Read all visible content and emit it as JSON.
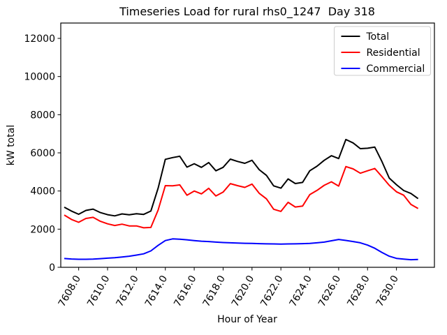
{
  "chart_data": {
    "type": "line",
    "title": "Timeseries Load for rural rhs0_1247  Day 318",
    "xlabel": "Hour of Year",
    "ylabel": "kW total",
    "xlim": [
      7606.76,
      7632.63
    ],
    "ylim": [
      0,
      12805
    ],
    "grid": false,
    "legend_position": "upper right",
    "x_start": 7607.0,
    "x_step": 0.5,
    "x_ticks": [
      7608,
      7610,
      7612,
      7614,
      7616,
      7618,
      7620,
      7622,
      7624,
      7626,
      7628,
      7630
    ],
    "x_tick_labels": [
      "7608.0",
      "7610.0",
      "7612.0",
      "7614.0",
      "7616.0",
      "7618.0",
      "7620.0",
      "7622.0",
      "7624.0",
      "7626.0",
      "7628.0",
      "7630.0"
    ],
    "y_ticks": [
      0,
      2000,
      4000,
      6000,
      8000,
      10000,
      12000
    ],
    "y_tick_labels": [
      "0",
      "2000",
      "4000",
      "6000",
      "8000",
      "10000",
      "12000"
    ],
    "series": [
      {
        "name": "Total",
        "color": "#000000",
        "values": [
          3150,
          2950,
          2780,
          2980,
          3050,
          2870,
          2760,
          2695,
          2800,
          2750,
          2810,
          2775,
          2950,
          4150,
          5660,
          5750,
          5820,
          5250,
          5430,
          5240,
          5490,
          5060,
          5240,
          5670,
          5550,
          5450,
          5610,
          5120,
          4820,
          4270,
          4150,
          4630,
          4390,
          4450,
          5060,
          5300,
          5610,
          5850,
          5700,
          6700,
          6520,
          6220,
          6240,
          6300,
          5540,
          4680,
          4330,
          4025,
          3870,
          3600
        ]
      },
      {
        "name": "Residential",
        "color": "#ff0000",
        "values": [
          2740,
          2510,
          2360,
          2560,
          2620,
          2410,
          2280,
          2190,
          2260,
          2170,
          2170,
          2070,
          2090,
          3000,
          4280,
          4270,
          4320,
          3780,
          4000,
          3850,
          4140,
          3740,
          3940,
          4385,
          4280,
          4190,
          4360,
          3880,
          3590,
          3045,
          2930,
          3405,
          3160,
          3210,
          3810,
          4030,
          4300,
          4480,
          4260,
          5280,
          5160,
          4930,
          5060,
          5180,
          4750,
          4300,
          3960,
          3780,
          3295,
          3080
        ]
      },
      {
        "name": "Commercial",
        "color": "#0000ff",
        "values": [
          460,
          435,
          420,
          420,
          430,
          455,
          480,
          505,
          540,
          580,
          640,
          705,
          860,
          1150,
          1400,
          1490,
          1470,
          1440,
          1400,
          1370,
          1350,
          1320,
          1300,
          1285,
          1270,
          1260,
          1250,
          1240,
          1230,
          1225,
          1220,
          1225,
          1230,
          1240,
          1250,
          1285,
          1320,
          1390,
          1460,
          1410,
          1350,
          1285,
          1165,
          1000,
          780,
          580,
          470,
          430,
          400,
          415
        ]
      }
    ]
  }
}
